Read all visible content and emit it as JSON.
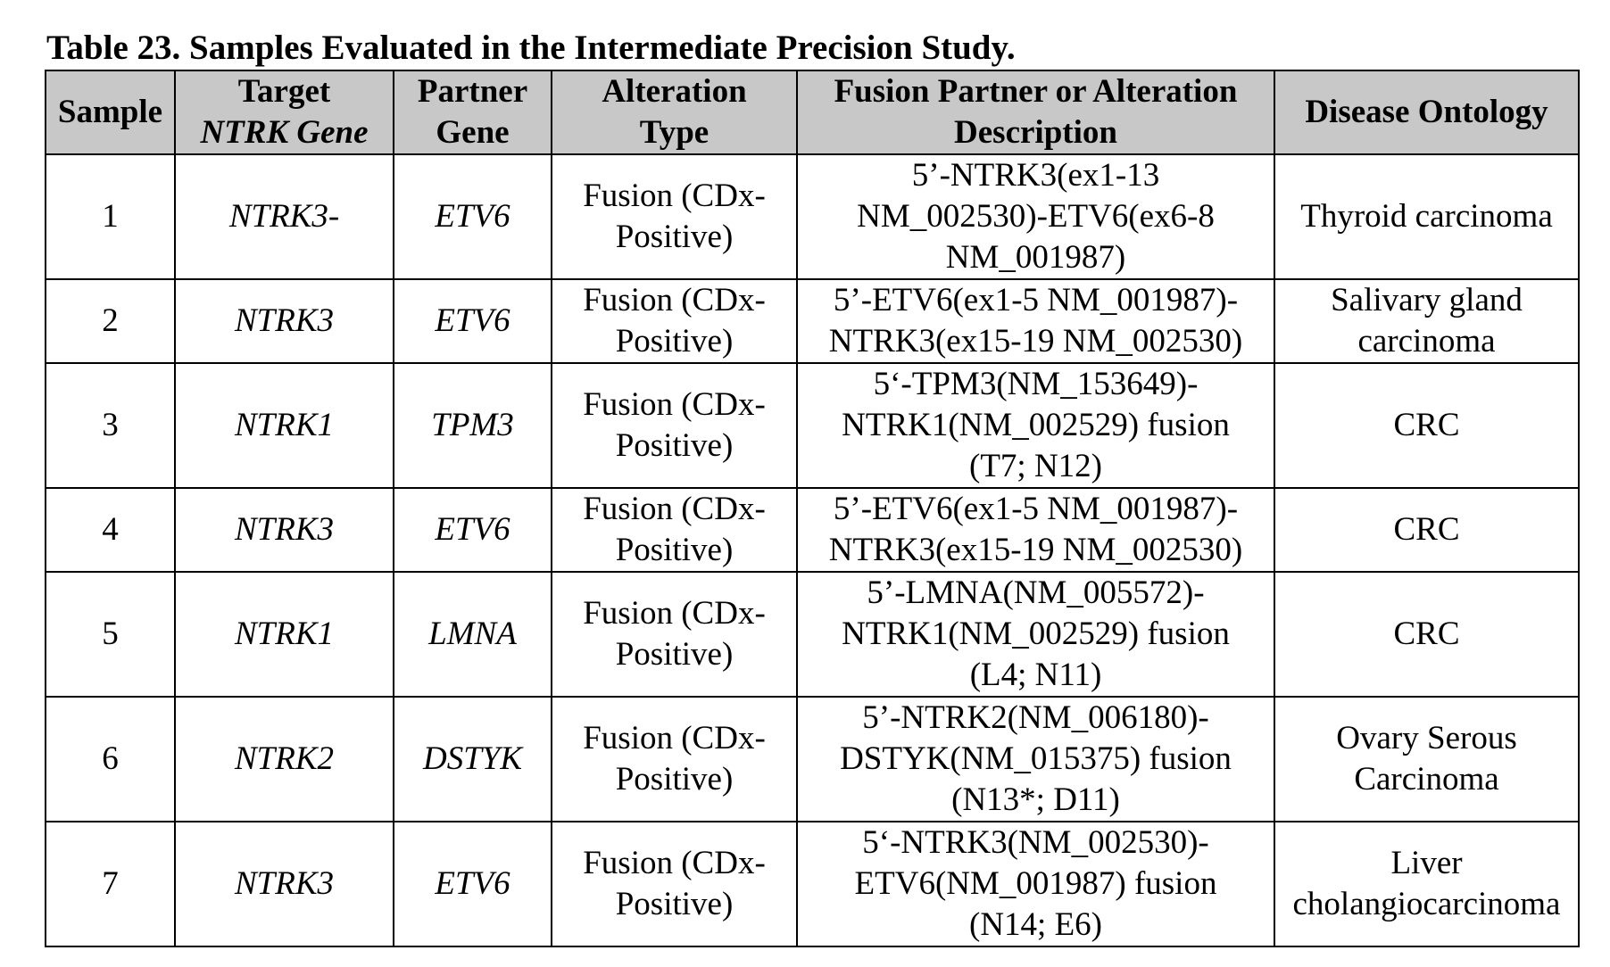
{
  "caption": {
    "label": "Table 23",
    "title": ". Samples Evaluated in the Intermediate Precision Study."
  },
  "header": {
    "sample": "Sample",
    "target_gene": [
      "Target",
      "NTRK Gene"
    ],
    "partner_gene": [
      "Partner",
      "Gene"
    ],
    "alteration_type": [
      "Alteration",
      "Type"
    ],
    "description": [
      "Fusion Partner or Alteration",
      "Description"
    ],
    "disease": "Disease Ontology"
  },
  "rows": [
    {
      "sample": "1",
      "target": "NTRK3-",
      "partner": "ETV6",
      "type": [
        "Fusion (CDx-",
        "Positive)"
      ],
      "description": [
        "5’-NTRK3(ex1-13",
        "NM_002530)-ETV6(ex6-8",
        "NM_001987)"
      ],
      "disease": [
        "Thyroid carcinoma"
      ]
    },
    {
      "sample": "2",
      "target": "NTRK3",
      "partner": "ETV6",
      "type": [
        "Fusion (CDx-",
        "Positive)"
      ],
      "description": [
        "5’-ETV6(ex1-5 NM_001987)-",
        "NTRK3(ex15-19 NM_002530)"
      ],
      "disease": [
        "Salivary gland",
        "carcinoma"
      ]
    },
    {
      "sample": "3",
      "target": "NTRK1",
      "partner": "TPM3",
      "type": [
        "Fusion (CDx-",
        "Positive)"
      ],
      "description": [
        "5‘-TPM3(NM_153649)-",
        "NTRK1(NM_002529) fusion",
        "(T7; N12)"
      ],
      "disease": [
        "CRC"
      ]
    },
    {
      "sample": "4",
      "target": "NTRK3",
      "partner": "ETV6",
      "type": [
        "Fusion (CDx-",
        "Positive)"
      ],
      "description": [
        "5’-ETV6(ex1-5 NM_001987)-",
        "NTRK3(ex15-19 NM_002530)"
      ],
      "disease": [
        "CRC"
      ]
    },
    {
      "sample": "5",
      "target": "NTRK1",
      "partner": "LMNA",
      "type": [
        "Fusion (CDx-",
        "Positive)"
      ],
      "description": [
        "5’-LMNA(NM_005572)-",
        "NTRK1(NM_002529) fusion",
        "(L4; N11)"
      ],
      "disease": [
        "CRC"
      ]
    },
    {
      "sample": "6",
      "target": "NTRK2",
      "partner": "DSTYK",
      "type": [
        "Fusion (CDx-",
        "Positive)"
      ],
      "description": [
        "5’-NTRK2(NM_006180)-",
        "DSTYK(NM_015375) fusion",
        "(N13*; D11)"
      ],
      "disease": [
        "Ovary Serous",
        "Carcinoma"
      ]
    },
    {
      "sample": "7",
      "target": "NTRK3",
      "partner": "ETV6",
      "type": [
        "Fusion (CDx-",
        "Positive)"
      ],
      "description": [
        "5‘-NTRK3(NM_002530)-",
        "ETV6(NM_001987) fusion",
        "(N14; E6)"
      ],
      "disease": [
        "Liver",
        "cholangiocarcinoma"
      ]
    }
  ]
}
